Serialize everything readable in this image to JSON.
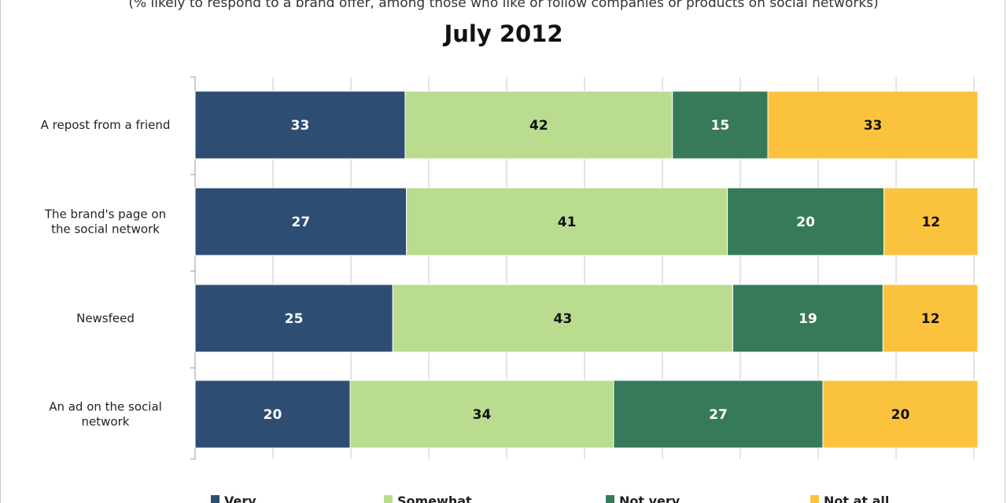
{
  "subtitle": "(% likely to respond to a brand offer, among those who like or follow companies or products on social networks)",
  "chart_data": {
    "type": "bar",
    "orientation": "horizontal",
    "stacked": true,
    "title": "July 2012",
    "categories": [
      "A repost from a friend",
      "The brand's page on the social network",
      "Newsfeed",
      "An ad on the social network"
    ],
    "category_lines": [
      [
        "A repost from a friend"
      ],
      [
        "The brand's page on",
        "the social network"
      ],
      [
        "Newsfeed"
      ],
      [
        "An ad on the social",
        "network"
      ]
    ],
    "series": [
      {
        "name": "Very",
        "color": "#2e4d73",
        "label_color": "#ffffff",
        "values": [
          33,
          27,
          25,
          20
        ]
      },
      {
        "name": "Somewhat",
        "color": "#b9dc8f",
        "label_color": "#111111",
        "values": [
          42,
          41,
          43,
          34
        ]
      },
      {
        "name": "Not very",
        "color": "#367a5a",
        "label_color": "#ffffff",
        "values": [
          15,
          20,
          19,
          27
        ]
      },
      {
        "name": "Not at all",
        "color": "#fbc23e",
        "label_color": "#111111",
        "values": [
          33,
          12,
          12,
          20
        ]
      }
    ],
    "grid": true,
    "legend_position": "bottom"
  }
}
